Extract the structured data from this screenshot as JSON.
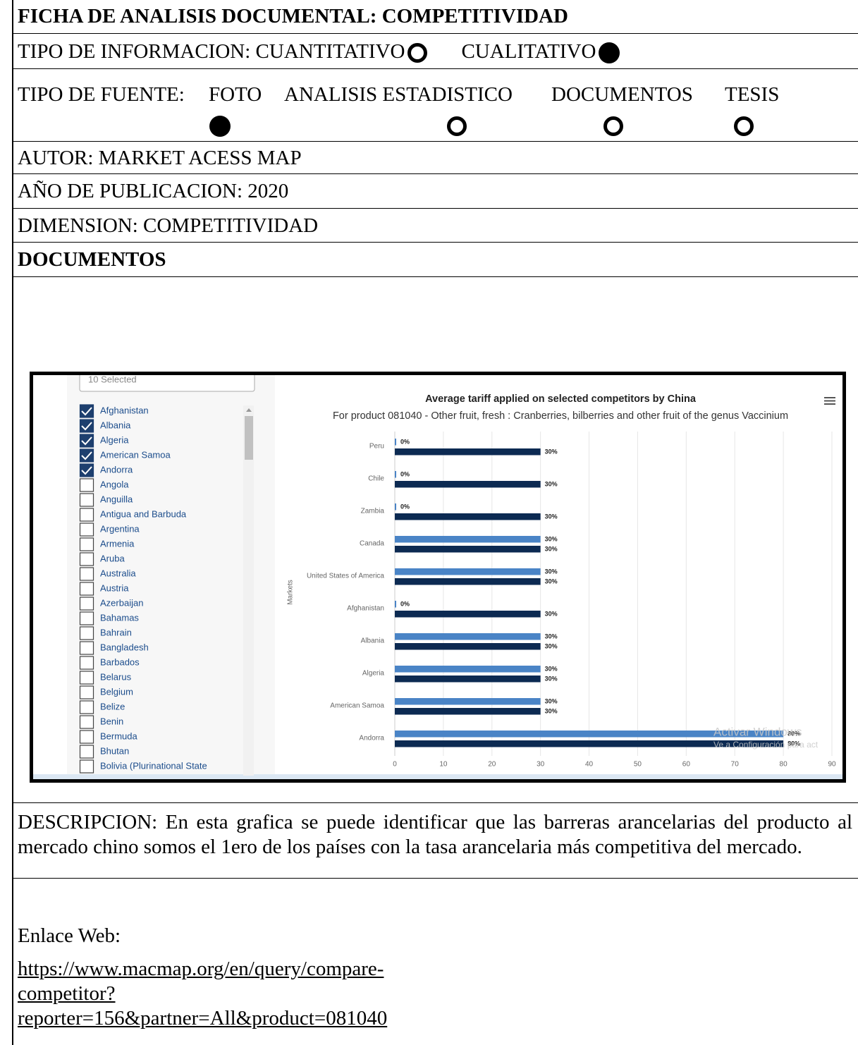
{
  "header": {
    "title": "FICHA DE ANALISIS DOCUMENTAL: COMPETITIVIDAD"
  },
  "tipo_informacion": {
    "label": "TIPO DE INFORMACION:",
    "options": [
      {
        "label": "CUANTITATIVO",
        "selected": false
      },
      {
        "label": "CUALITATIVO",
        "selected": true
      }
    ]
  },
  "tipo_fuente": {
    "label": "TIPO DE FUENTE:",
    "options": [
      {
        "label": "FOTO",
        "selected": true
      },
      {
        "label": "ANALISIS ESTADISTICO",
        "selected": false
      },
      {
        "label": "DOCUMENTOS",
        "selected": false
      },
      {
        "label": "TESIS",
        "selected": false
      }
    ]
  },
  "autor": "AUTOR: MARKET ACESS MAP",
  "anio": "AÑO DE PUBLICACION: 2020",
  "dimension": "DIMENSION: COMPETITIVIDAD",
  "section": "DOCUMENTOS",
  "screenshot": {
    "selector": {
      "placeholder": "10 Selected",
      "items": [
        {
          "label": "Afghanistan",
          "checked": true
        },
        {
          "label": "Albania",
          "checked": true
        },
        {
          "label": "Algeria",
          "checked": true
        },
        {
          "label": "American Samoa",
          "checked": true
        },
        {
          "label": "Andorra",
          "checked": true
        },
        {
          "label": "Angola",
          "checked": false
        },
        {
          "label": "Anguilla",
          "checked": false
        },
        {
          "label": "Antigua and Barbuda",
          "checked": false
        },
        {
          "label": "Argentina",
          "checked": false
        },
        {
          "label": "Armenia",
          "checked": false
        },
        {
          "label": "Aruba",
          "checked": false
        },
        {
          "label": "Australia",
          "checked": false
        },
        {
          "label": "Austria",
          "checked": false
        },
        {
          "label": "Azerbaijan",
          "checked": false
        },
        {
          "label": "Bahamas",
          "checked": false
        },
        {
          "label": "Bahrain",
          "checked": false
        },
        {
          "label": "Bangladesh",
          "checked": false
        },
        {
          "label": "Barbados",
          "checked": false
        },
        {
          "label": "Belarus",
          "checked": false
        },
        {
          "label": "Belgium",
          "checked": false
        },
        {
          "label": "Belize",
          "checked": false
        },
        {
          "label": "Benin",
          "checked": false
        },
        {
          "label": "Bermuda",
          "checked": false
        },
        {
          "label": "Bhutan",
          "checked": false
        },
        {
          "label": "Bolivia (Plurinational State",
          "checked": false
        }
      ]
    },
    "chart": {
      "type": "bar",
      "orientation": "horizontal",
      "title": "Average tariff applied on selected competitors by China",
      "subtitle": "For product 081040 - Other fruit, fresh : Cranberries, bilberries and other fruit of the genus Vaccinium",
      "ylabel": "Markets",
      "categories": [
        "Peru",
        "Chile",
        "Zambia",
        "Canada",
        "United States of America",
        "Afghanistan",
        "Albania",
        "Algeria",
        "American Samoa",
        "Andorra"
      ],
      "series": [
        {
          "color": "#4a84c6",
          "values": [
            0,
            0,
            0,
            30,
            30,
            0,
            30,
            30,
            30,
            80
          ],
          "value_labels": [
            "0%",
            "0%",
            "0%",
            "30%",
            "30%",
            "0%",
            "30%",
            "30%",
            "30%",
            "80%"
          ]
        },
        {
          "color": "#0c2a52",
          "values": [
            30,
            30,
            30,
            30,
            30,
            30,
            30,
            30,
            30,
            80
          ],
          "value_labels": [
            "30%",
            "30%",
            "30%",
            "30%",
            "30%",
            "30%",
            "30%",
            "30%",
            "30%",
            "80%"
          ]
        }
      ],
      "xlim": [
        0,
        90
      ],
      "xticks": [
        0,
        10,
        20,
        30,
        40,
        50,
        60,
        70,
        80,
        90
      ],
      "grid": true
    },
    "watermark": [
      "Activar Windows",
      "Ve a Configuración para act"
    ]
  },
  "descripcion": "DESCRIPCION: En esta grafica se puede identificar que las barreras arancelarias del producto al mercado chino somos el 1ero de los países con la tasa arancelaria más competitiva del mercado.",
  "enlace": {
    "label": "Enlace Web:",
    "url": "https://www.macmap.org/en/query/compare-competitor?reporter=156&partner=All&product=081040"
  }
}
